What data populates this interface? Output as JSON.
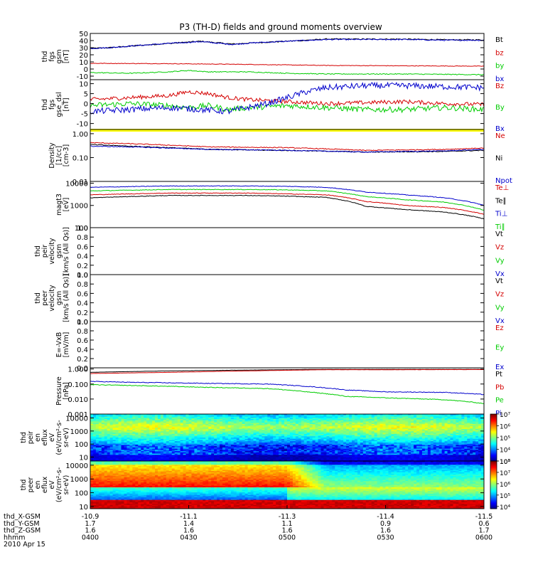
{
  "title": "P3 (TH-D) fields and ground moments overview",
  "colors": {
    "black": "#000000",
    "red": "#d40000",
    "green": "#00cc00",
    "blue": "#0000cc",
    "yellow": "#ffff00"
  },
  "chart_data": [
    {
      "type": "line",
      "name": "panel-fgs-gsm",
      "ylabel": [
        "thd",
        "fgs",
        "gsm",
        "[nT]"
      ],
      "ylim": [
        -15,
        50
      ],
      "ticks": [
        {
          "v": 50,
          "t": "50"
        },
        {
          "v": 40,
          "t": "40"
        },
        {
          "v": 30,
          "t": "30"
        },
        {
          "v": 20,
          "t": "20"
        },
        {
          "v": 10,
          "t": "10"
        },
        {
          "v": 0,
          "t": "0"
        },
        {
          "v": -10,
          "t": "-10"
        }
      ],
      "legend": [
        {
          "text": "Bt",
          "color": "black"
        },
        {
          "text": "bz",
          "color": "red"
        },
        {
          "text": "by",
          "color": "green"
        },
        {
          "text": "bx",
          "color": "blue"
        }
      ],
      "series": [
        {
          "color": "black",
          "noise": 0.8,
          "x": [
            0,
            0.05,
            0.12,
            0.2,
            0.28,
            0.36,
            0.42,
            0.5,
            0.6,
            0.7,
            0.8,
            0.9,
            1
          ],
          "y": [
            29,
            30,
            33,
            36,
            39,
            35,
            37,
            39,
            42,
            42,
            42,
            41,
            41
          ]
        },
        {
          "color": "blue",
          "noise": 0.8,
          "x": [
            0,
            0.05,
            0.12,
            0.2,
            0.28,
            0.36,
            0.42,
            0.5,
            0.6,
            0.7,
            0.8,
            0.9,
            1
          ],
          "y": [
            29,
            30,
            33,
            36,
            38.5,
            34.5,
            37,
            39,
            41.5,
            41.5,
            41.5,
            40.5,
            40.5
          ]
        },
        {
          "color": "red",
          "noise": 0.4,
          "x": [
            0,
            0.2,
            0.4,
            0.6,
            0.8,
            1
          ],
          "y": [
            8,
            7.5,
            6.5,
            5,
            4.5,
            4
          ]
        },
        {
          "color": "green",
          "noise": 0.6,
          "x": [
            0,
            0.1,
            0.2,
            0.25,
            0.3,
            0.4,
            0.5,
            0.6,
            0.7,
            0.8,
            0.9,
            1
          ],
          "y": [
            -5,
            -6,
            -4,
            -2,
            -4,
            -4,
            -6,
            -7,
            -7,
            -7,
            -7.5,
            -8
          ]
        }
      ]
    },
    {
      "type": "line",
      "name": "panel-fgs-gse",
      "ylabel": [
        "thd",
        "fgs",
        "gse_dsl",
        "[nT]"
      ],
      "ylim": [
        -13,
        12
      ],
      "ticks": [
        {
          "v": 10,
          "t": "10"
        },
        {
          "v": 5,
          "t": "5"
        },
        {
          "v": 0,
          "t": "0"
        },
        {
          "v": -5,
          "t": "-5"
        },
        {
          "v": -10,
          "t": "-10"
        }
      ],
      "legend": [
        {
          "text": "Bz",
          "color": "red"
        },
        {
          "text": "By",
          "color": "green"
        },
        {
          "text": "Bx",
          "color": "blue"
        }
      ],
      "series": [
        {
          "color": "red",
          "noise": 1.0,
          "x": [
            0,
            0.1,
            0.2,
            0.25,
            0.3,
            0.35,
            0.4,
            0.5,
            0.6,
            0.7,
            0.8,
            0.9,
            1
          ],
          "y": [
            2,
            3,
            4,
            6,
            5,
            3,
            2,
            1,
            0,
            0.5,
            1,
            0,
            -0.5
          ]
        },
        {
          "color": "green",
          "noise": 1.4,
          "x": [
            0,
            0.1,
            0.2,
            0.25,
            0.3,
            0.35,
            0.4,
            0.5,
            0.6,
            0.7,
            0.8,
            0.9,
            1
          ],
          "y": [
            -1,
            0,
            -1,
            -2,
            -1,
            -3,
            -2,
            -1,
            -2,
            -3,
            -3,
            -2,
            -3
          ]
        },
        {
          "color": "blue",
          "noise": 1.5,
          "x": [
            0,
            0.1,
            0.2,
            0.28,
            0.35,
            0.4,
            0.45,
            0.5,
            0.55,
            0.6,
            0.7,
            0.8,
            0.9,
            1
          ],
          "y": [
            -4,
            -3,
            -2,
            -3,
            -4,
            -2,
            0,
            3,
            6,
            8,
            9,
            9,
            8.5,
            8
          ]
        }
      ]
    },
    {
      "type": "line",
      "name": "panel-density",
      "yscale": "log",
      "ylabel": [
        "Density",
        "[1/cc]",
        "[cm-3]"
      ],
      "ylim": [
        0.01,
        1.5
      ],
      "ticks": [
        {
          "v": 1,
          "t": "1.00"
        },
        {
          "v": 0.1,
          "t": "0.10"
        },
        {
          "v": 0.01,
          "t": "0.01"
        }
      ],
      "legend": [
        {
          "text": "Ne",
          "color": "red"
        },
        {
          "text": "Ni",
          "color": "black"
        },
        {
          "text": "Npot",
          "color": "blue"
        }
      ],
      "band": {
        "y0": 1.6,
        "y1": 1.3,
        "color": "yellow"
      },
      "series": [
        {
          "color": "red",
          "noise": 0.04,
          "x": [
            0,
            0.1,
            0.3,
            0.5,
            0.7,
            0.9,
            1
          ],
          "y": [
            0.42,
            0.38,
            0.28,
            0.26,
            0.2,
            0.22,
            0.25
          ]
        },
        {
          "color": "black",
          "noise": 0.04,
          "x": [
            0,
            0.1,
            0.3,
            0.5,
            0.7,
            0.9,
            1
          ],
          "y": [
            0.35,
            0.3,
            0.22,
            0.2,
            0.17,
            0.18,
            0.2
          ]
        },
        {
          "color": "blue",
          "noise": 0.04,
          "x": [
            0,
            0.1,
            0.3,
            0.5,
            0.7,
            0.9,
            1
          ],
          "y": [
            0.3,
            0.28,
            0.22,
            0.2,
            0.17,
            0.19,
            0.22
          ]
        }
      ]
    },
    {
      "type": "line",
      "name": "panel-temperature",
      "yscale": "log",
      "ylabel": [
        "magt3",
        "[eV]"
      ],
      "ylim": [
        100,
        12000
      ],
      "ticks": [
        {
          "v": 10000,
          "t": "10000"
        },
        {
          "v": 1000,
          "t": "1000"
        },
        {
          "v": 100,
          "t": "100"
        }
      ],
      "legend": [
        {
          "text": "Te⊥",
          "color": "red"
        },
        {
          "text": "Te∥",
          "color": "black"
        },
        {
          "text": "Ti⊥",
          "color": "blue"
        },
        {
          "text": "Ti∥",
          "color": "green"
        }
      ],
      "series": [
        {
          "color": "blue",
          "noise": 0.03,
          "x": [
            0,
            0.2,
            0.4,
            0.5,
            0.6,
            0.7,
            0.8,
            0.9,
            1
          ],
          "y": [
            6500,
            7500,
            7500,
            7200,
            6500,
            4000,
            3000,
            2200,
            1000
          ]
        },
        {
          "color": "green",
          "noise": 0.03,
          "x": [
            0,
            0.2,
            0.4,
            0.5,
            0.6,
            0.7,
            0.8,
            0.9,
            1
          ],
          "y": [
            4500,
            5200,
            5200,
            5000,
            4500,
            2500,
            1800,
            1400,
            600
          ]
        },
        {
          "color": "red",
          "noise": 0.03,
          "x": [
            0,
            0.2,
            0.4,
            0.5,
            0.6,
            0.7,
            0.8,
            0.9,
            1
          ],
          "y": [
            3000,
            3600,
            3600,
            3300,
            3000,
            1500,
            1000,
            800,
            400
          ]
        },
        {
          "color": "black",
          "noise": 0.03,
          "x": [
            0,
            0.2,
            0.4,
            0.5,
            0.6,
            0.7,
            0.8,
            0.9,
            1
          ],
          "y": [
            2200,
            2800,
            2800,
            2600,
            2300,
            900,
            650,
            500,
            250
          ]
        }
      ]
    },
    {
      "type": "line",
      "name": "panel-peir-velocity",
      "ylabel": [
        "thd",
        "peir",
        "velocity",
        "gsm",
        "[km/s (All Qs)]"
      ],
      "ylim": [
        0,
        1
      ],
      "ticks": [
        {
          "v": 1,
          "t": "1.0"
        },
        {
          "v": 0.8,
          "t": "0.8"
        },
        {
          "v": 0.6,
          "t": "0.6"
        },
        {
          "v": 0.4,
          "t": "0.4"
        },
        {
          "v": 0.2,
          "t": "0.2"
        },
        {
          "v": 0,
          "t": "0.0"
        }
      ],
      "legend": [
        {
          "text": "Vt",
          "color": "black"
        },
        {
          "text": "Vz",
          "color": "red"
        },
        {
          "text": "Vy",
          "color": "green"
        },
        {
          "text": "Vx",
          "color": "blue"
        }
      ],
      "series": []
    },
    {
      "type": "line",
      "name": "panel-peer-velocity",
      "ylabel": [
        "thd",
        "peer",
        "velocity",
        "gsm",
        "[km/s (All Qs)]"
      ],
      "ylim": [
        0,
        1
      ],
      "ticks": [
        {
          "v": 1,
          "t": "1.0"
        },
        {
          "v": 0.8,
          "t": "0.8"
        },
        {
          "v": 0.6,
          "t": "0.6"
        },
        {
          "v": 0.4,
          "t": "0.4"
        },
        {
          "v": 0.2,
          "t": "0.2"
        },
        {
          "v": 0,
          "t": "0.0"
        }
      ],
      "legend": [
        {
          "text": "Vt",
          "color": "black"
        },
        {
          "text": "Vz",
          "color": "red"
        },
        {
          "text": "Vy",
          "color": "green"
        },
        {
          "text": "Vx",
          "color": "blue"
        }
      ],
      "series": []
    },
    {
      "type": "line",
      "name": "panel-e-field",
      "ylabel": [
        "E=-VxB",
        "[mV/m]"
      ],
      "ylim": [
        0,
        1
      ],
      "ticks": [
        {
          "v": 1,
          "t": "1.0"
        },
        {
          "v": 0.8,
          "t": "0.8"
        },
        {
          "v": 0.6,
          "t": "0.6"
        },
        {
          "v": 0.4,
          "t": "0.4"
        },
        {
          "v": 0.2,
          "t": "0.2"
        },
        {
          "v": 0,
          "t": "0.0"
        }
      ],
      "legend": [
        {
          "text": "Ez",
          "color": "red"
        },
        {
          "text": "Ey",
          "color": "green"
        },
        {
          "text": "Ex",
          "color": "blue"
        }
      ],
      "series": []
    },
    {
      "type": "line",
      "name": "panel-pressure",
      "yscale": "log",
      "ylabel": [
        "Pressure",
        "[nPa]"
      ],
      "ylim": [
        0.001,
        1.2
      ],
      "ticks": [
        {
          "v": 1,
          "t": "1.000"
        },
        {
          "v": 0.1,
          "t": "0.100"
        },
        {
          "v": 0.01,
          "t": "0.010"
        },
        {
          "v": 0.001,
          "t": "0.001"
        }
      ],
      "legend": [
        {
          "text": "Pt",
          "color": "black"
        },
        {
          "text": "Pb",
          "color": "red"
        },
        {
          "text": "Pe",
          "color": "green"
        },
        {
          "text": "Pi",
          "color": "blue"
        }
      ],
      "series": [
        {
          "color": "black",
          "noise": 0.01,
          "x": [
            0,
            0.2,
            0.4,
            0.6,
            0.8,
            1
          ],
          "y": [
            0.6,
            0.75,
            0.85,
            0.95,
            0.95,
            0.95
          ]
        },
        {
          "color": "red",
          "noise": 0.01,
          "x": [
            0,
            0.2,
            0.4,
            0.6,
            0.8,
            1
          ],
          "y": [
            0.5,
            0.6,
            0.75,
            0.9,
            0.9,
            0.92
          ]
        },
        {
          "color": "blue",
          "noise": 0.05,
          "x": [
            0,
            0.1,
            0.3,
            0.45,
            0.55,
            0.65,
            0.75,
            0.9,
            1
          ],
          "y": [
            0.15,
            0.13,
            0.11,
            0.1,
            0.07,
            0.04,
            0.03,
            0.028,
            0.02
          ]
        },
        {
          "color": "green",
          "noise": 0.05,
          "x": [
            0,
            0.1,
            0.3,
            0.45,
            0.55,
            0.65,
            0.75,
            0.9,
            1
          ],
          "y": [
            0.09,
            0.08,
            0.06,
            0.05,
            0.03,
            0.015,
            0.012,
            0.009,
            0.005
          ]
        }
      ]
    },
    {
      "type": "heatmap",
      "name": "panel-peir-spectrogram",
      "yscale": "log",
      "ylabel": [
        "thd",
        "peir",
        "en",
        "eflux",
        "eV",
        "(eV/cm²-s-",
        "sr-eV)"
      ],
      "ylim": [
        5,
        20000
      ],
      "ticks": [
        {
          "v": 10000,
          "t": "10000"
        },
        {
          "v": 1000,
          "t": "1000"
        },
        {
          "v": 100,
          "t": "100"
        },
        {
          "v": 10,
          "t": "10"
        }
      ],
      "colorbar": {
        "min": 3,
        "max": 7,
        "ticks": [
          {
            "v": 7,
            "t": "10⁷"
          },
          {
            "v": 6,
            "t": "10⁶"
          },
          {
            "v": 5,
            "t": "10⁵"
          },
          {
            "v": 4,
            "t": "10⁴"
          },
          {
            "v": 3,
            "t": "10³"
          }
        ]
      }
    },
    {
      "type": "heatmap",
      "name": "panel-peer-spectrogram",
      "yscale": "log",
      "ylabel": [
        "thd",
        "peer",
        "en",
        "eflux",
        "eV",
        "(eV/cm²-s-",
        "sr-eV)"
      ],
      "ylim": [
        7,
        20000
      ],
      "ticks": [
        {
          "v": 10000,
          "t": "10000"
        },
        {
          "v": 1000,
          "t": "1000"
        },
        {
          "v": 100,
          "t": "100"
        },
        {
          "v": 10,
          "t": "10"
        }
      ],
      "colorbar": {
        "min": 3.8,
        "max": 8,
        "ticks": [
          {
            "v": 8,
            "t": "10⁸"
          },
          {
            "v": 7,
            "t": "10⁷"
          },
          {
            "v": 6,
            "t": "10⁶"
          },
          {
            "v": 5,
            "t": "10⁵"
          },
          {
            "v": 4,
            "t": "10⁴"
          }
        ]
      }
    }
  ],
  "xaxis": {
    "ticks": [
      0,
      0.25,
      0.5,
      0.75,
      1
    ],
    "rows": [
      {
        "label": "thd_X-GSM",
        "values": [
          "-10.9",
          "-11.1",
          "-11.3",
          "-11.4",
          "-11.5"
        ]
      },
      {
        "label": "thd_Y-GSM",
        "values": [
          "1.7",
          "1.4",
          "1.1",
          "0.9",
          "0.6"
        ]
      },
      {
        "label": "thd_Z-GSM",
        "values": [
          "1.6",
          "1.6",
          "1.6",
          "1.6",
          "1.7"
        ]
      },
      {
        "label": "hhmm",
        "values": [
          "0400",
          "0430",
          "0500",
          "0530",
          "0600"
        ]
      }
    ],
    "date": "2010 Apr 15"
  }
}
